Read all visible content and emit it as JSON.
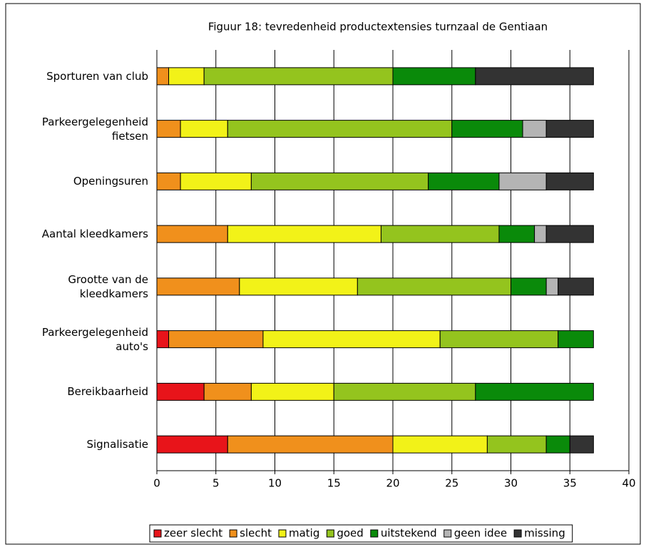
{
  "chart_data": {
    "type": "stacked_barh",
    "title": "Figuur 18: tevredenheid productextensies turnzaal de Gentiaan",
    "categories": [
      "Sporturen van club",
      "Parkeergelegenheid fietsen",
      "Openingsuren",
      "Aantal kleedkamers",
      "Grootte van de kleedkamers",
      "Parkeergelegenheid auto's",
      "Bereikbaarheid",
      "Signalisatie"
    ],
    "series": [
      {
        "name": "zeer slecht",
        "color": "#e8141a",
        "values": [
          0,
          0,
          0,
          0,
          0,
          1,
          4,
          6
        ]
      },
      {
        "name": "slecht",
        "color": "#f0901c",
        "values": [
          1,
          2,
          2,
          6,
          7,
          8,
          4,
          14
        ]
      },
      {
        "name": "matig",
        "color": "#f2f218",
        "values": [
          3,
          4,
          6,
          13,
          10,
          15,
          7,
          8
        ]
      },
      {
        "name": "goed",
        "color": "#94c41e",
        "values": [
          16,
          19,
          15,
          10,
          13,
          10,
          12,
          5
        ]
      },
      {
        "name": "uitstekend",
        "color": "#0a8a0a",
        "values": [
          7,
          6,
          6,
          3,
          3,
          3,
          10,
          2
        ]
      },
      {
        "name": "geen idee",
        "color": "#b4b4b4",
        "values": [
          0,
          2,
          4,
          1,
          1,
          0,
          0,
          0
        ]
      },
      {
        "name": "missing",
        "color": "#333333",
        "values": [
          10,
          4,
          4,
          4,
          3,
          0,
          0,
          2
        ]
      }
    ],
    "xlim": [
      0,
      40
    ],
    "xticks": [
      0,
      5,
      10,
      15,
      20,
      25,
      30,
      35,
      40
    ],
    "grid": true,
    "legend": "bottom"
  }
}
